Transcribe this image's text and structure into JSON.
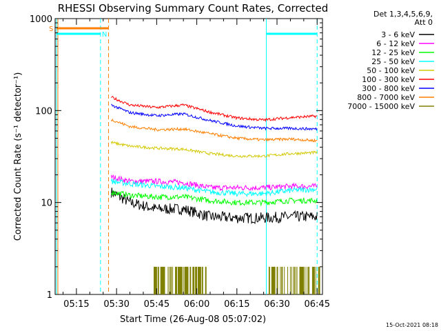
{
  "chart_data": {
    "type": "line",
    "title": "RHESSI Observing Summary Count Rates, Corrected",
    "xlabel": "Start Time (26-Aug-08 05:07:02)",
    "ylabel": "Corrected Count Rate (s⁻¹ detector⁻¹)",
    "yscale": "log",
    "ylim": [
      1,
      1000
    ],
    "xlim": [
      "05:07:02",
      "06:47:00"
    ],
    "x_ticks": [
      "05:15",
      "05:30",
      "05:45",
      "06:00",
      "06:15",
      "06:30",
      "06:45"
    ],
    "y_ticks": [
      "1",
      "10",
      "100",
      "1000"
    ],
    "legend_header": [
      "Det 1,3,4,5,6,9,",
      "Att 0"
    ],
    "legend_position": "top-right",
    "grid": false,
    "x": [
      "05:28",
      "05:35",
      "05:45",
      "05:55",
      "06:05",
      "06:15",
      "06:25",
      "06:35",
      "06:45"
    ],
    "series": [
      {
        "name": "3 - 6 keV",
        "color": "#000000",
        "values": [
          13,
          10,
          8.5,
          8.5,
          7.0,
          6.8,
          6.8,
          7.0,
          7.0
        ]
      },
      {
        "name": "6 - 12 keV",
        "color": "#ff00ff",
        "values": [
          19,
          17,
          17,
          16.5,
          14.5,
          14.5,
          14.5,
          15,
          15
        ]
      },
      {
        "name": "12 - 25 keV",
        "color": "#00ff00",
        "values": [
          13,
          12,
          11.5,
          11.5,
          10.5,
          10,
          10,
          10.5,
          10.5
        ]
      },
      {
        "name": "25 - 50 keV",
        "color": "#00ffff",
        "values": [
          17,
          16,
          15,
          14.5,
          13,
          12.5,
          12.5,
          13.5,
          14
        ]
      },
      {
        "name": "50 - 100 keV",
        "color": "#d4c800",
        "values": [
          45,
          41,
          39,
          38,
          34,
          32,
          32,
          34,
          35
        ]
      },
      {
        "name": "100 - 300 keV",
        "color": "#ff0000",
        "values": [
          140,
          115,
          108,
          115,
          96,
          83,
          79,
          84,
          87
        ]
      },
      {
        "name": "300 - 800 keV",
        "color": "#0000ff",
        "values": [
          115,
          95,
          88,
          92,
          78,
          68,
          64,
          64,
          63
        ]
      },
      {
        "name": "800 - 7000 keV",
        "color": "#ff7f00",
        "values": [
          80,
          67,
          62,
          63,
          56,
          50,
          48,
          49,
          47
        ]
      },
      {
        "name": "7000 - 15000 keV",
        "color": "#808000",
        "values": [
          1,
          1,
          2,
          2,
          1,
          1,
          1,
          2,
          2
        ]
      }
    ],
    "flags": [
      {
        "label": "S",
        "color": "#ff7f00",
        "start": "05:07:02",
        "end": "05:27:00"
      },
      {
        "label": "N",
        "color": "#00ffff",
        "start": "05:07:02",
        "end": "05:24:00"
      }
    ],
    "saa_markers": {
      "color": "#00ffff",
      "times": [
        "05:07:02",
        "05:24:00",
        "06:26:00",
        "06:45:00"
      ]
    },
    "night_markers": {
      "color": "#ff7f00",
      "times": [
        "05:07:02",
        "05:27:00"
      ]
    }
  },
  "timestamp": "15-Oct-2021 08:18"
}
